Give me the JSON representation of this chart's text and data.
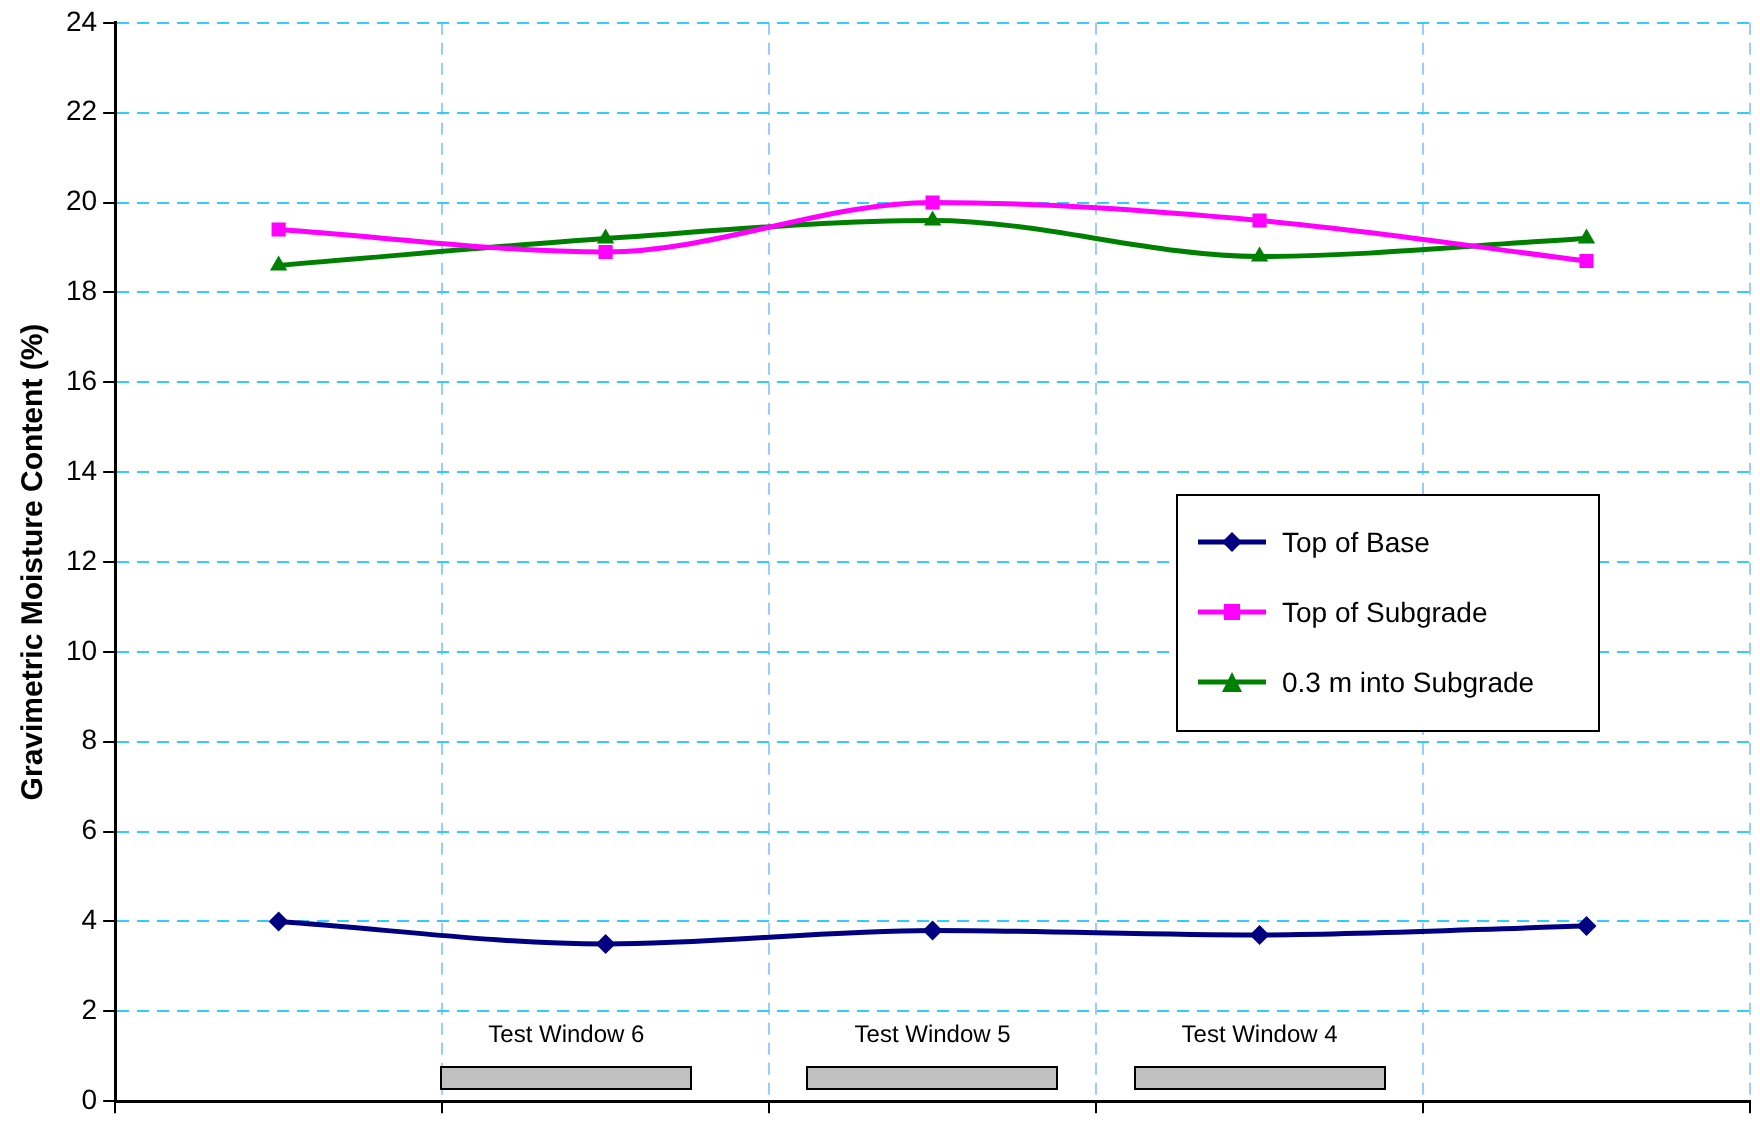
{
  "chart_data": {
    "type": "line",
    "ylabel": "Gravimetric Moisture Content (%)",
    "categories": [
      null,
      null,
      null,
      null,
      null
    ],
    "series": [
      {
        "name": "Top of Base",
        "color": "#000080",
        "marker": "diamond",
        "values": [
          4.0,
          3.5,
          3.8,
          3.7,
          3.9
        ]
      },
      {
        "name": "Top of Subgrade",
        "color": "#ff00ff",
        "marker": "square",
        "values": [
          19.4,
          18.9,
          20.0,
          19.6,
          18.7
        ]
      },
      {
        "name": "0.3 m into Subgrade",
        "color": "#008000",
        "marker": "triangle",
        "values": [
          18.6,
          19.2,
          19.6,
          18.8,
          19.2
        ]
      }
    ],
    "ylim": [
      0,
      24
    ],
    "yticks": [
      0,
      2,
      4,
      6,
      8,
      10,
      12,
      14,
      16,
      18,
      20,
      22,
      24
    ],
    "grid": true,
    "legend": "right",
    "tick_labels": "y",
    "annotations": [
      "Test Window 6",
      "Test Window 5",
      "Test Window 4"
    ]
  }
}
